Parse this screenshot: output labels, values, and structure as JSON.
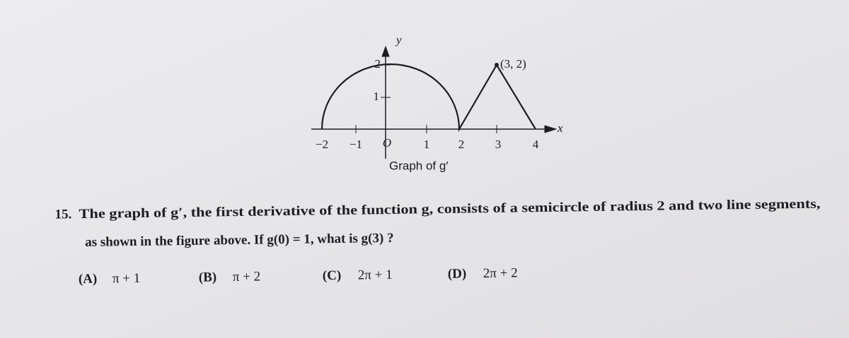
{
  "figure": {
    "y_axis_label": "y",
    "x_axis_label": "x",
    "x_tick_labels": [
      "−2",
      "−1",
      "O",
      "1",
      "2",
      "3",
      "4"
    ],
    "y_tick_labels": [
      "1",
      "2"
    ],
    "point_label": "(3, 2)",
    "caption": "Graph of g′"
  },
  "question": {
    "number": "15.",
    "lines": [
      "The graph of g′, the first derivative of the function g, consists of a semicircle of radius 2 and two line segments,",
      "as shown in the figure above. If g(0) = 1, what is g(3) ?"
    ],
    "choices": [
      {
        "letter": "(A)",
        "answer": "π + 1"
      },
      {
        "letter": "(B)",
        "answer": "π + 2"
      },
      {
        "letter": "(C)",
        "answer": "2π + 1"
      },
      {
        "letter": "(D)",
        "answer": "2π + 2"
      }
    ]
  }
}
